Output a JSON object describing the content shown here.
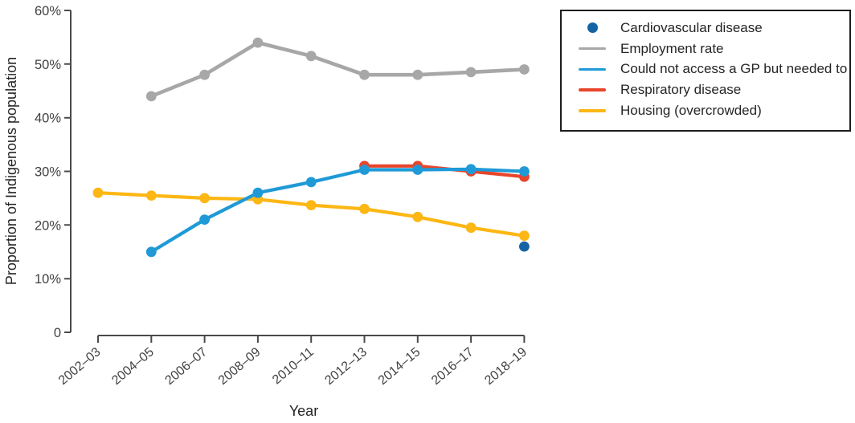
{
  "legend": {
    "items": [
      {
        "label": "Cardiovascular disease",
        "swatch": "dot",
        "color": "#1464a5"
      },
      {
        "label": "Employment rate",
        "swatch": "line",
        "color": "#a7a7a7"
      },
      {
        "label": "Could not access a GP but needed to",
        "swatch": "line",
        "color": "#1f9ad7"
      },
      {
        "label": "Respiratory disease",
        "swatch": "line",
        "color": "#e8452b"
      },
      {
        "label": "Housing (overcrowded)",
        "swatch": "line",
        "color": "#fdb714"
      }
    ]
  },
  "chart_data": {
    "type": "line",
    "title": "",
    "xlabel": "Year",
    "ylabel": "Proportion of Indigenous population",
    "ylim": [
      0,
      60
    ],
    "grid": false,
    "legend_position": "top-right",
    "categories": [
      "2002–03",
      "2004–05",
      "2006–07",
      "2008–09",
      "2010–11",
      "2012–13",
      "2014–15",
      "2016–17",
      "2018–19"
    ],
    "y_ticks": [
      {
        "value": 60,
        "label": "60%"
      },
      {
        "value": 50,
        "label": "50%"
      },
      {
        "value": 40,
        "label": "40%"
      },
      {
        "value": 30,
        "label": "30%"
      },
      {
        "value": 20,
        "label": "20%"
      },
      {
        "value": 10,
        "label": "10%"
      },
      {
        "value": 0,
        "label": "0"
      }
    ],
    "series": [
      {
        "name": "Cardiovascular disease",
        "color": "#1464a5",
        "style": "marker-only",
        "values": [
          null,
          null,
          null,
          null,
          null,
          null,
          null,
          null,
          16
        ]
      },
      {
        "name": "Employment rate",
        "color": "#a7a7a7",
        "style": "line-marker",
        "values": [
          null,
          44,
          48,
          54,
          51.5,
          48,
          48,
          48.5,
          49
        ]
      },
      {
        "name": "Could not access a GP but needed to",
        "color": "#1f9ad7",
        "style": "line-marker",
        "values": [
          null,
          15,
          21,
          26,
          28,
          30.3,
          30.3,
          30.4,
          30
        ]
      },
      {
        "name": "Respiratory disease",
        "color": "#e8452b",
        "style": "line-marker",
        "values": [
          null,
          null,
          null,
          null,
          null,
          31,
          31,
          30,
          29
        ]
      },
      {
        "name": "Housing (overcrowded)",
        "color": "#fdb714",
        "style": "line-marker",
        "values": [
          26,
          25.5,
          25,
          24.8,
          23.7,
          23,
          21.5,
          19.5,
          18
        ]
      }
    ]
  }
}
